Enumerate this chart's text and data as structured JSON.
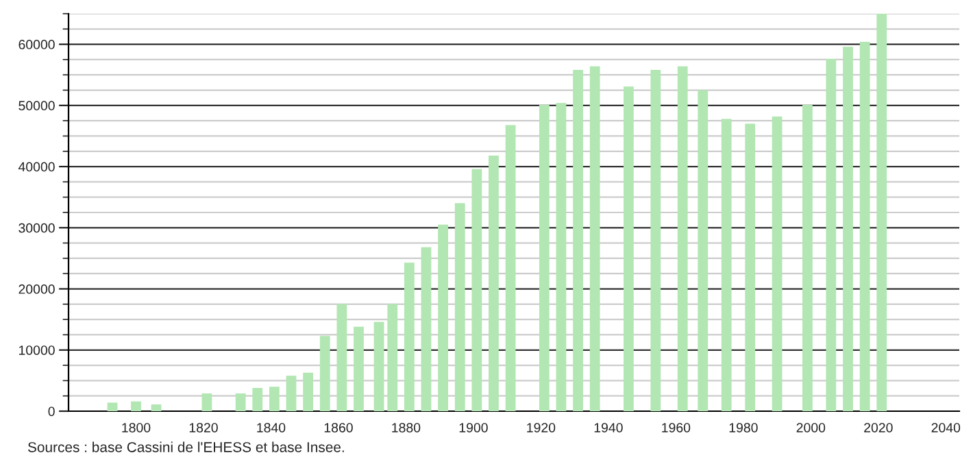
{
  "chart_data": {
    "type": "bar",
    "x": [
      1793,
      1800,
      1806,
      1821,
      1831,
      1836,
      1841,
      1846,
      1851,
      1856,
      1861,
      1866,
      1872,
      1876,
      1881,
      1886,
      1891,
      1896,
      1901,
      1906,
      1911,
      1921,
      1926,
      1931,
      1936,
      1946,
      1954,
      1962,
      1968,
      1975,
      1982,
      1990,
      1999,
      2006,
      2011,
      2016,
      2021
    ],
    "values": [
      1400,
      1600,
      1100,
      2900,
      2900,
      3800,
      4000,
      5800,
      6300,
      12300,
      17500,
      13800,
      14600,
      17500,
      24300,
      26800,
      30500,
      34000,
      39600,
      41800,
      46800,
      50100,
      50400,
      55800,
      56400,
      53100,
      55800,
      56400,
      52500,
      47800,
      47000,
      48200,
      50100,
      57600,
      59600,
      60400,
      65000
    ],
    "color": "#b2e6b2",
    "xlim": [
      1780,
      2044
    ],
    "xticks": [
      1800,
      1820,
      1840,
      1860,
      1880,
      1900,
      1920,
      1940,
      1960,
      1980,
      2000,
      2020,
      2040
    ],
    "ylim": [
      0,
      65000
    ],
    "yticks": [
      0,
      10000,
      20000,
      30000,
      40000,
      50000,
      60000
    ],
    "grid": "y",
    "annotations": [
      "Sources : base Cassini de l'EHESS et base Insee."
    ]
  }
}
